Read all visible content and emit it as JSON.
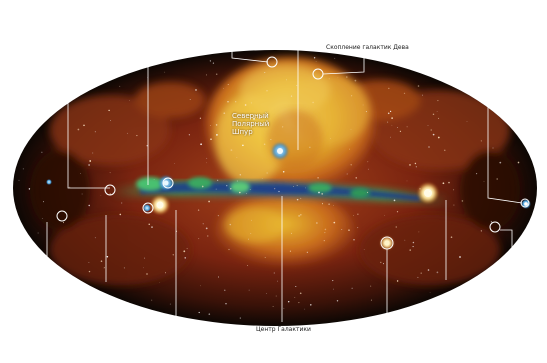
{
  "labels": {
    "cluster_virgo": "Скопление галактик Дева",
    "interior": "Северный Полярный Шпур",
    "center": "Центр Галактики"
  },
  "colors": {
    "background": "#ffffff",
    "sky_outer": "#0d0704",
    "sky_red": "#7a2410",
    "sky_orange": "#c86a1c",
    "bubble_yellow": "#e8b830",
    "plane_blue": "#1e5a9a",
    "plane_green": "#3aa860",
    "leader_line": "#ffffff",
    "label_text": "#1a1a1a"
  }
}
